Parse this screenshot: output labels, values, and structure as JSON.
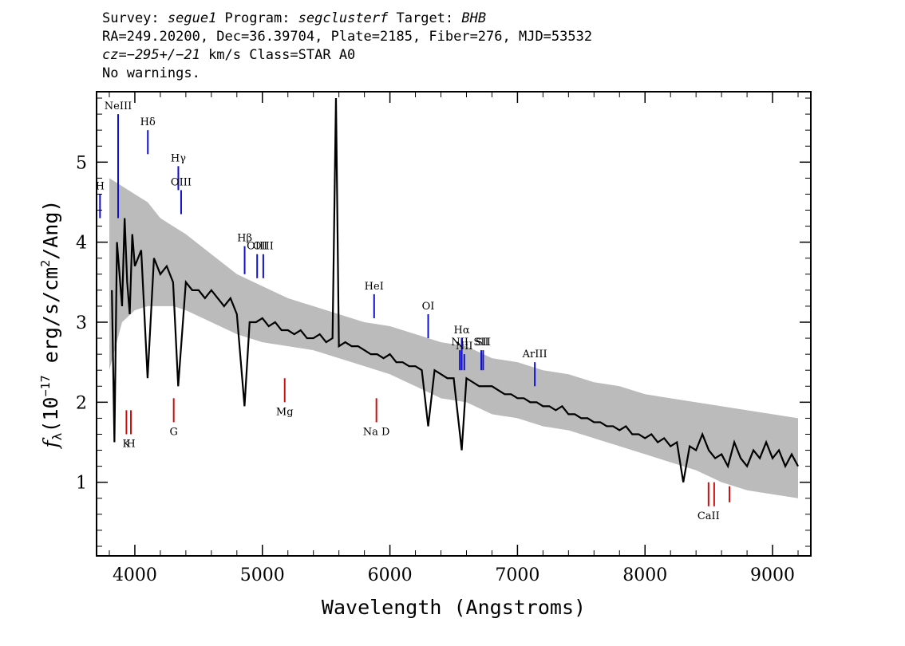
{
  "header": {
    "line1_a": "Survey: ",
    "line1_b": "segue1",
    "line1_c": " Program: ",
    "line1_d": "segclusterf",
    "line1_e": " Target: ",
    "line1_f": "BHB",
    "line2": "RA=249.20200, Dec=36.39704, Plate=2185, Fiber=276, MJD=53532",
    "line3_a": "cz=−295+/−21",
    "line3_b": " km/s Class=STAR A0",
    "line4": "No warnings."
  },
  "chart_data": {
    "type": "line",
    "xlabel": "Wavelength (Angstroms)",
    "ylabel_prefix": "f",
    "ylabel_sub": "λ",
    "ylabel_units": "(10",
    "ylabel_exp": "−17",
    "ylabel_rest": " erg/s/cm",
    "ylabel_exp2": "2",
    "ylabel_end": "/Ang)",
    "xlim": [
      3700,
      9300
    ],
    "ylim": [
      0.08,
      5.88
    ],
    "x_ticks": [
      4000,
      5000,
      6000,
      7000,
      8000,
      9000
    ],
    "x_tick_labels": [
      "4000",
      "5000",
      "6000",
      "7000",
      "8000",
      "9000"
    ],
    "y_ticks": [
      1,
      2,
      3,
      4,
      5
    ],
    "y_tick_labels": [
      "1",
      "2",
      "3",
      "4",
      "5"
    ],
    "series": [
      {
        "role": "error-band",
        "color": "#bbbbbb",
        "x": [
          3800,
          3900,
          4000,
          4100,
          4200,
          4300,
          4400,
          4600,
          4800,
          5000,
          5200,
          5400,
          5600,
          5800,
          6000,
          6200,
          6400,
          6600,
          6800,
          7000,
          7200,
          7400,
          7600,
          7800,
          8000,
          8200,
          8400,
          8600,
          8800,
          9000,
          9200
        ],
        "lower": [
          2.4,
          3.0,
          3.15,
          3.2,
          3.2,
          3.2,
          3.15,
          3.0,
          2.85,
          2.75,
          2.7,
          2.65,
          2.55,
          2.45,
          2.35,
          2.2,
          2.05,
          2.0,
          1.85,
          1.8,
          1.7,
          1.65,
          1.55,
          1.45,
          1.35,
          1.25,
          1.15,
          1.0,
          0.9,
          0.85,
          0.8
        ],
        "upper": [
          4.8,
          4.7,
          4.6,
          4.5,
          4.3,
          4.2,
          4.1,
          3.85,
          3.6,
          3.45,
          3.3,
          3.2,
          3.1,
          3.0,
          2.95,
          2.85,
          2.75,
          2.7,
          2.55,
          2.5,
          2.4,
          2.35,
          2.25,
          2.2,
          2.1,
          2.05,
          2.0,
          1.95,
          1.9,
          1.85,
          1.8
        ]
      },
      {
        "role": "flux",
        "color": "#000000",
        "x": [
          3820,
          3840,
          3860,
          3880,
          3900,
          3920,
          3940,
          3960,
          3980,
          4000,
          4050,
          4100,
          4150,
          4200,
          4250,
          4300,
          4340,
          4400,
          4450,
          4500,
          4550,
          4600,
          4650,
          4700,
          4750,
          4800,
          4860,
          4900,
          4950,
          5000,
          5050,
          5100,
          5150,
          5200,
          5250,
          5300,
          5350,
          5400,
          5450,
          5500,
          5550,
          5577,
          5600,
          5650,
          5700,
          5750,
          5800,
          5850,
          5900,
          5950,
          6000,
          6050,
          6100,
          6150,
          6200,
          6250,
          6300,
          6350,
          6400,
          6450,
          6500,
          6563,
          6600,
          6650,
          6700,
          6750,
          6800,
          6850,
          6900,
          6950,
          7000,
          7050,
          7100,
          7150,
          7200,
          7250,
          7300,
          7350,
          7400,
          7450,
          7500,
          7550,
          7600,
          7650,
          7700,
          7750,
          7800,
          7850,
          7900,
          7950,
          8000,
          8050,
          8100,
          8150,
          8200,
          8250,
          8300,
          8350,
          8400,
          8450,
          8500,
          8550,
          8600,
          8650,
          8700,
          8750,
          8800,
          8850,
          8900,
          8950,
          9000,
          9050,
          9100,
          9150,
          9200
        ],
        "y": [
          3.4,
          1.5,
          4.0,
          3.6,
          3.2,
          4.3,
          3.5,
          3.1,
          4.1,
          3.7,
          3.9,
          2.3,
          3.8,
          3.6,
          3.7,
          3.5,
          2.2,
          3.5,
          3.4,
          3.4,
          3.3,
          3.4,
          3.3,
          3.2,
          3.3,
          3.1,
          1.95,
          3.0,
          3.0,
          3.05,
          2.95,
          3.0,
          2.9,
          2.9,
          2.85,
          2.9,
          2.8,
          2.8,
          2.85,
          2.75,
          2.8,
          5.8,
          2.7,
          2.75,
          2.7,
          2.7,
          2.65,
          2.6,
          2.6,
          2.55,
          2.6,
          2.5,
          2.5,
          2.45,
          2.45,
          2.4,
          1.7,
          2.4,
          2.35,
          2.3,
          2.3,
          1.4,
          2.3,
          2.25,
          2.2,
          2.2,
          2.2,
          2.15,
          2.1,
          2.1,
          2.05,
          2.05,
          2.0,
          2.0,
          1.95,
          1.95,
          1.9,
          1.95,
          1.85,
          1.85,
          1.8,
          1.8,
          1.75,
          1.75,
          1.7,
          1.7,
          1.65,
          1.7,
          1.6,
          1.6,
          1.55,
          1.6,
          1.5,
          1.55,
          1.45,
          1.5,
          1.0,
          1.45,
          1.4,
          1.6,
          1.4,
          1.3,
          1.35,
          1.2,
          1.5,
          1.3,
          1.2,
          1.4,
          1.3,
          1.5,
          1.3,
          1.4,
          1.2,
          1.35,
          1.2
        ]
      }
    ],
    "emission_lines": [
      {
        "label": "NeIII",
        "x": 3869,
        "y0": 4.3,
        "y1": 5.6
      },
      {
        "label": "Hδ",
        "x": 4102,
        "y0": 5.1,
        "y1": 5.4
      },
      {
        "label": "Hγ",
        "x": 4341,
        "y0": 4.65,
        "y1": 4.95
      },
      {
        "label": "OIII",
        "x": 4363,
        "y0": 4.35,
        "y1": 4.65
      },
      {
        "label": "H",
        "x": 3727,
        "y0": 4.3,
        "y1": 4.6
      },
      {
        "label": "Hβ",
        "x": 4861,
        "y0": 3.6,
        "y1": 3.95
      },
      {
        "label": "OIII",
        "x": 4959,
        "y0": 3.55,
        "y1": 3.85
      },
      {
        "label": "OIII",
        "x": 5007,
        "y0": 3.55,
        "y1": 3.85
      },
      {
        "label": "HeI",
        "x": 5876,
        "y0": 3.05,
        "y1": 3.35
      },
      {
        "label": "OI",
        "x": 6300,
        "y0": 2.8,
        "y1": 3.1
      },
      {
        "label": "NII",
        "x": 6548,
        "y0": 2.4,
        "y1": 2.65
      },
      {
        "label": "Hα",
        "x": 6563,
        "y0": 2.4,
        "y1": 2.8
      },
      {
        "label": "NII",
        "x": 6583,
        "y0": 2.4,
        "y1": 2.6
      },
      {
        "label": "SII",
        "x": 6716,
        "y0": 2.4,
        "y1": 2.65
      },
      {
        "label": "SII",
        "x": 6731,
        "y0": 2.4,
        "y1": 2.65
      },
      {
        "label": "ArIII",
        "x": 7136,
        "y0": 2.2,
        "y1": 2.5
      }
    ],
    "absorption_lines": [
      {
        "label": "K",
        "x": 3934,
        "y0": 1.6,
        "y1": 1.9
      },
      {
        "label": "H",
        "x": 3969,
        "y0": 1.6,
        "y1": 1.9
      },
      {
        "label": "G",
        "x": 4305,
        "y0": 1.75,
        "y1": 2.05
      },
      {
        "label": "Mg",
        "x": 5175,
        "y0": 2.0,
        "y1": 2.3
      },
      {
        "label": "Na D",
        "x": 5894,
        "y0": 1.75,
        "y1": 2.05
      },
      {
        "label": "CaII",
        "x": 8498,
        "y0": 0.7,
        "y1": 1.0
      },
      {
        "label": "",
        "x": 8542,
        "y0": 0.7,
        "y1": 1.0
      },
      {
        "label": "",
        "x": 8662,
        "y0": 0.75,
        "y1": 0.95
      }
    ],
    "emission_color": "#1010cc",
    "absorption_color": "#cc1010"
  }
}
